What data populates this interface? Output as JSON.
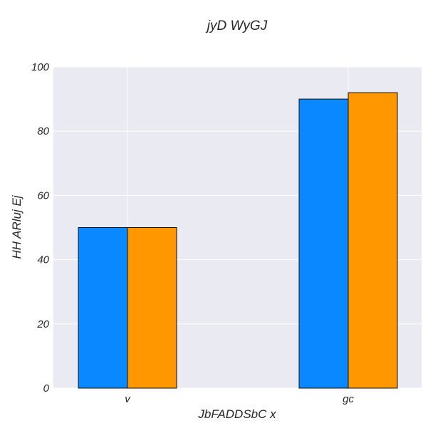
{
  "chart_data": {
    "type": "bar",
    "title": "jyD  WyGJ",
    "xlabel": "JbFADDSbC x",
    "ylabel": "HH ARluj Ej",
    "categories": [
      "v",
      "gc"
    ],
    "series": [
      {
        "values": [
          50,
          90
        ],
        "color": "#0a88ff"
      },
      {
        "values": [
          50,
          92
        ],
        "color": "#ff9800"
      }
    ],
    "ylim": [
      0,
      100
    ],
    "yticks": [
      0,
      20,
      40,
      60,
      80,
      100
    ],
    "grid": true,
    "legend": "none",
    "plot_background": "#e9eaf2"
  }
}
